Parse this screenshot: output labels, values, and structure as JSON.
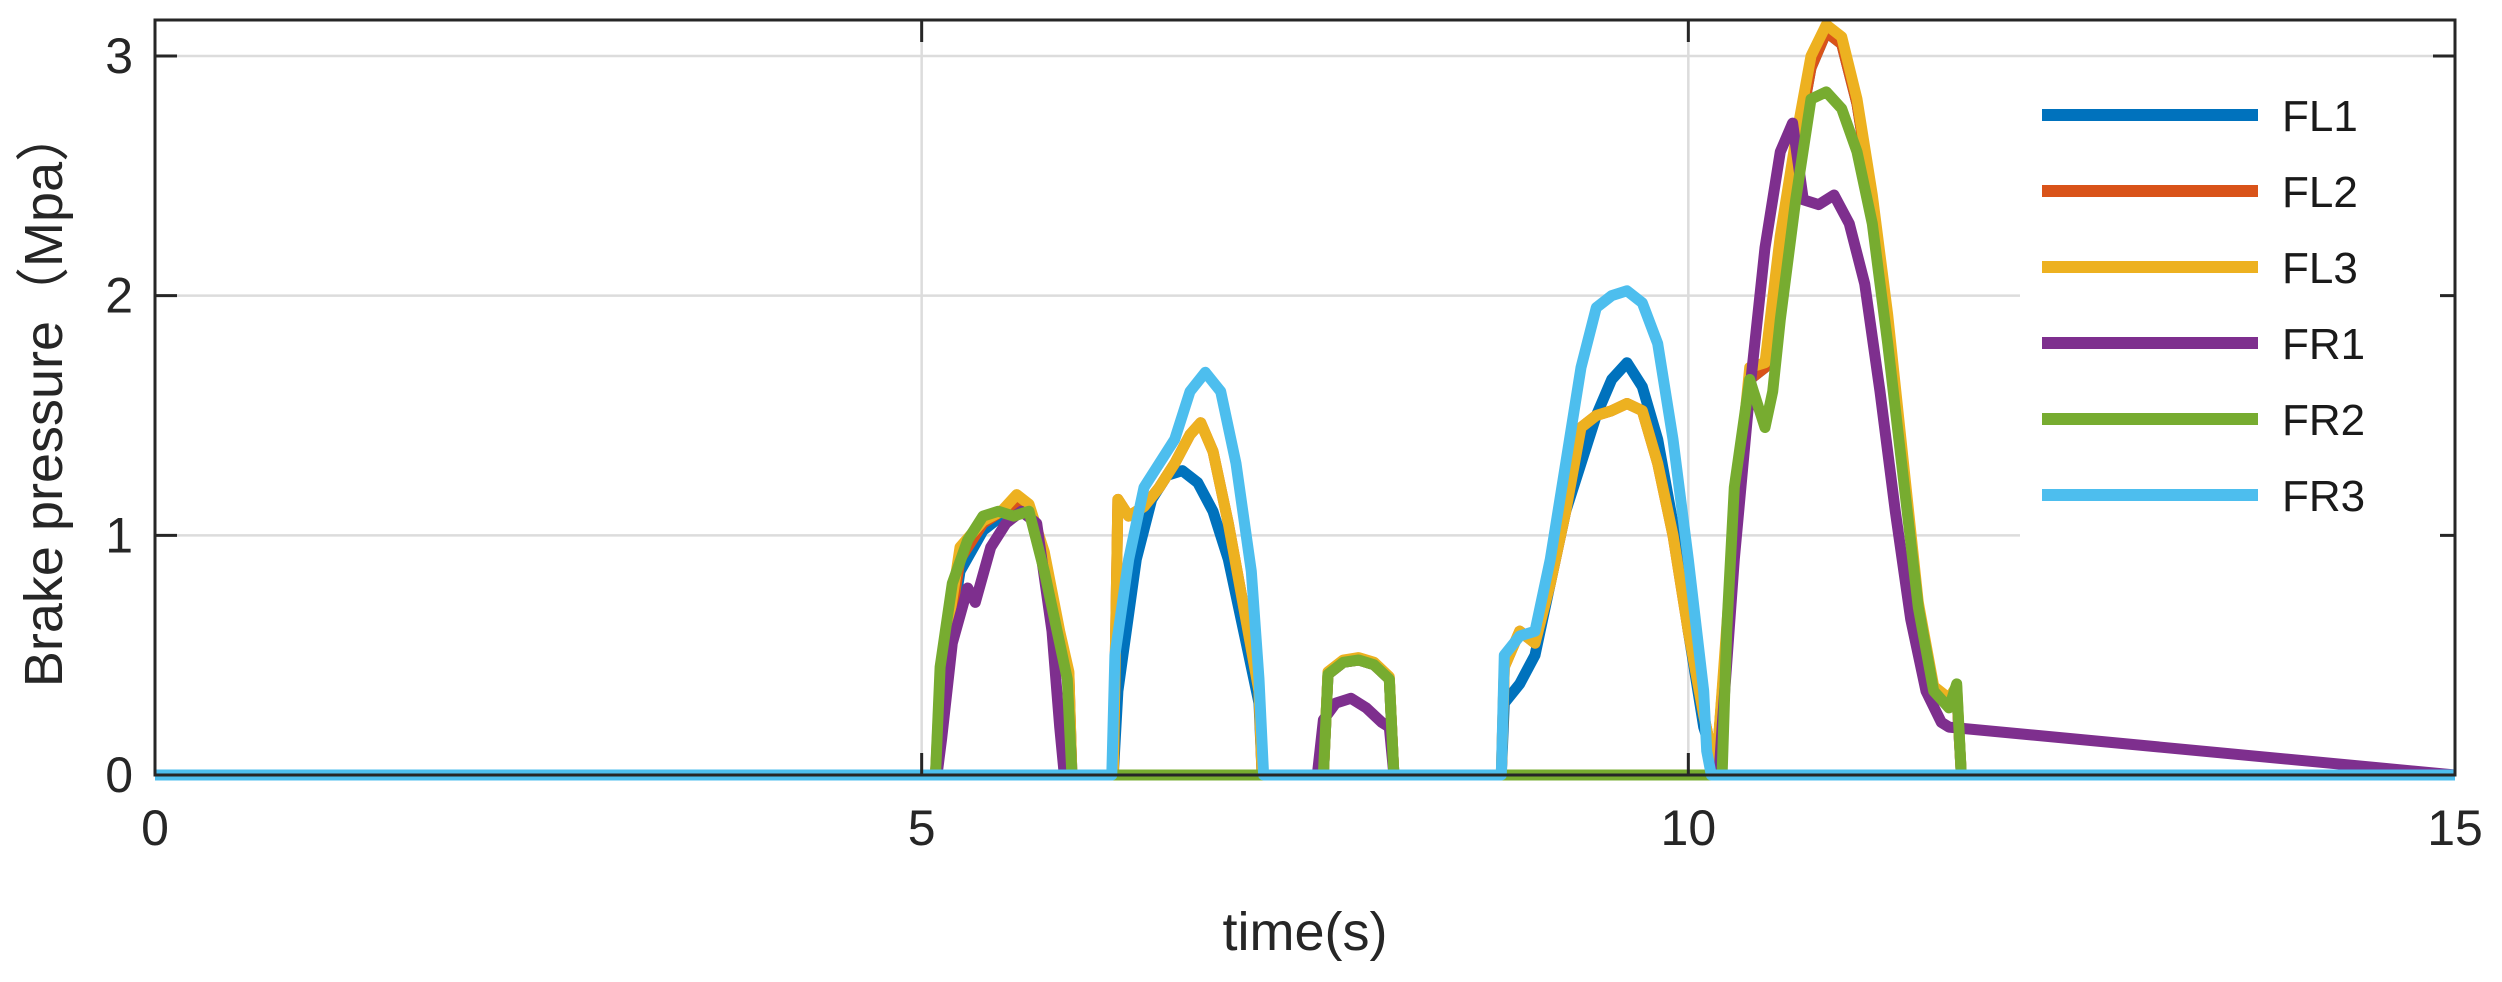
{
  "chart_data": {
    "type": "line",
    "title": "",
    "xlabel": "time(s)",
    "ylabel": "Brake pressure（Mpa）",
    "xlim": [
      0,
      15
    ],
    "ylim": [
      0,
      3.15
    ],
    "xticks": [
      0,
      5,
      10,
      15
    ],
    "xtick_labels": [
      "0",
      "5",
      "10",
      "15"
    ],
    "yticks": [
      0,
      1,
      2,
      3
    ],
    "ytick_labels": [
      "0",
      "1",
      "2",
      "3"
    ],
    "grid": true,
    "legend_position": "top-right",
    "series": [
      {
        "name": "FL1",
        "color": "#0072BD",
        "x": [
          0,
          5.09,
          5.12,
          5.25,
          5.4,
          5.52,
          5.62,
          5.7,
          5.8,
          5.9,
          5.96,
          5.98,
          6.25,
          6.28,
          6.4,
          6.5,
          6.6,
          6.7,
          6.8,
          6.9,
          7.0,
          7.1,
          7.2,
          7.22,
          7.62,
          7.65,
          7.75,
          7.85,
          7.95,
          8.05,
          8.08,
          8.78,
          8.8,
          8.9,
          9.0,
          9.1,
          9.2,
          9.3,
          9.4,
          9.5,
          9.6,
          9.7,
          9.8,
          9.9,
          10.0,
          10.1,
          10.15,
          10.18,
          10.3,
          10.4,
          10.5,
          10.6,
          10.7,
          10.8,
          10.9,
          11.0,
          11.1,
          11.2,
          11.3,
          11.4,
          11.5,
          11.6,
          11.7,
          11.75,
          11.78,
          15
        ],
        "y": [
          0,
          0,
          0.3,
          0.85,
          1.02,
          1.08,
          1.12,
          1.1,
          0.9,
          0.55,
          0.4,
          0,
          0,
          0.35,
          0.9,
          1.15,
          1.25,
          1.27,
          1.22,
          1.1,
          0.9,
          0.6,
          0.3,
          0,
          0,
          0.42,
          0.47,
          0.48,
          0.46,
          0.4,
          0,
          0,
          0.3,
          0.38,
          0.5,
          0.8,
          1.1,
          1.3,
          1.5,
          1.65,
          1.72,
          1.62,
          1.4,
          1.05,
          0.6,
          0.2,
          0.1,
          0,
          1.0,
          1.65,
          1.7,
          2.2,
          2.6,
          2.95,
          3.1,
          3.05,
          2.8,
          2.4,
          1.9,
          1.3,
          0.7,
          0.35,
          0.3,
          0.35,
          0,
          0
        ]
      },
      {
        "name": "FL2",
        "color": "#D95319",
        "x": [
          0,
          5.09,
          5.12,
          5.25,
          5.4,
          5.52,
          5.62,
          5.7,
          5.8,
          5.9,
          5.96,
          5.98,
          6.25,
          6.28,
          6.35,
          6.45,
          6.55,
          6.65,
          6.75,
          6.82,
          6.9,
          7.0,
          7.1,
          7.2,
          7.22,
          7.62,
          7.65,
          7.75,
          7.85,
          7.95,
          8.05,
          8.08,
          8.78,
          8.8,
          8.9,
          9.0,
          9.1,
          9.2,
          9.3,
          9.4,
          9.5,
          9.6,
          9.7,
          9.8,
          9.9,
          10.0,
          10.1,
          10.15,
          10.18,
          10.3,
          10.4,
          10.5,
          10.6,
          10.7,
          10.8,
          10.9,
          11.0,
          11.1,
          11.2,
          11.3,
          11.4,
          11.5,
          11.6,
          11.7,
          11.75,
          11.78,
          15
        ],
        "y": [
          0,
          0,
          0.35,
          0.9,
          1.05,
          1.1,
          1.14,
          1.12,
          0.92,
          0.58,
          0.42,
          0,
          0,
          1.15,
          1.08,
          1.12,
          1.2,
          1.3,
          1.42,
          1.47,
          1.35,
          1.05,
          0.7,
          0.35,
          0,
          0,
          0.42,
          0.47,
          0.48,
          0.46,
          0.4,
          0,
          0,
          0.45,
          0.6,
          0.55,
          0.8,
          1.1,
          1.45,
          1.5,
          1.52,
          1.55,
          1.52,
          1.3,
          1.0,
          0.6,
          0.25,
          0.1,
          0,
          1.0,
          1.65,
          1.7,
          2.2,
          2.6,
          2.95,
          3.1,
          3.05,
          2.8,
          2.4,
          1.9,
          1.3,
          0.7,
          0.35,
          0.3,
          0.35,
          0,
          0
        ]
      },
      {
        "name": "FL3",
        "color": "#EDB120",
        "x": [
          0,
          5.09,
          5.12,
          5.25,
          5.4,
          5.52,
          5.62,
          5.7,
          5.8,
          5.9,
          5.96,
          5.98,
          6.25,
          6.28,
          6.35,
          6.45,
          6.55,
          6.65,
          6.75,
          6.82,
          6.9,
          7.0,
          7.1,
          7.2,
          7.22,
          7.62,
          7.65,
          7.75,
          7.85,
          7.95,
          8.05,
          8.08,
          8.78,
          8.8,
          8.9,
          9.0,
          9.1,
          9.2,
          9.3,
          9.4,
          9.5,
          9.6,
          9.7,
          9.8,
          9.9,
          10.0,
          10.1,
          10.15,
          10.18,
          10.3,
          10.4,
          10.5,
          10.6,
          10.7,
          10.8,
          10.9,
          11.0,
          11.1,
          11.2,
          11.3,
          11.4,
          11.5,
          11.6,
          11.7,
          11.75,
          11.78,
          15
        ],
        "y": [
          0,
          0,
          0.4,
          0.95,
          1.06,
          1.1,
          1.17,
          1.13,
          0.93,
          0.6,
          0.43,
          0,
          0,
          1.15,
          1.08,
          1.12,
          1.2,
          1.3,
          1.42,
          1.47,
          1.35,
          1.05,
          0.7,
          0.35,
          0,
          0,
          0.43,
          0.48,
          0.49,
          0.47,
          0.41,
          0,
          0,
          0.45,
          0.6,
          0.55,
          0.8,
          1.1,
          1.45,
          1.5,
          1.52,
          1.55,
          1.52,
          1.3,
          1.0,
          0.6,
          0.25,
          0.1,
          0,
          1.05,
          1.7,
          1.72,
          2.25,
          2.65,
          3.0,
          3.13,
          3.08,
          2.82,
          2.42,
          1.92,
          1.32,
          0.72,
          0.37,
          0.32,
          0.37,
          0,
          0
        ]
      },
      {
        "name": "FR1",
        "color": "#7E2F8E",
        "x": [
          0,
          5.1,
          5.13,
          5.2,
          5.3,
          5.35,
          5.45,
          5.55,
          5.65,
          5.75,
          5.85,
          5.9,
          5.93,
          6.32,
          7.58,
          7.62,
          7.7,
          7.8,
          7.9,
          8.0,
          8.05,
          8.08,
          10.2,
          10.22,
          10.3,
          10.4,
          10.5,
          10.6,
          10.68,
          10.75,
          10.85,
          10.95,
          11.05,
          11.15,
          11.25,
          11.35,
          11.45,
          11.55,
          11.65,
          11.7,
          15
        ],
        "y": [
          0,
          0,
          0.15,
          0.55,
          0.78,
          0.72,
          0.95,
          1.05,
          1.1,
          1.05,
          0.6,
          0.2,
          0,
          0,
          0,
          0.23,
          0.3,
          0.32,
          0.28,
          0.22,
          0.2,
          0,
          0,
          0.2,
          0.9,
          1.6,
          2.2,
          2.6,
          2.72,
          2.4,
          2.38,
          2.42,
          2.3,
          2.05,
          1.6,
          1.1,
          0.65,
          0.35,
          0.22,
          0.2,
          0
        ]
      },
      {
        "name": "FR2",
        "color": "#77AC30",
        "x": [
          0,
          5.09,
          5.12,
          5.2,
          5.3,
          5.4,
          5.5,
          5.6,
          5.7,
          5.8,
          5.9,
          5.95,
          5.98,
          7.62,
          7.65,
          7.75,
          7.85,
          7.95,
          8.05,
          8.08,
          10.22,
          10.25,
          10.3,
          10.4,
          10.45,
          10.5,
          10.55,
          10.6,
          10.7,
          10.8,
          10.9,
          11.0,
          11.1,
          11.2,
          11.3,
          11.4,
          11.5,
          11.6,
          11.7,
          11.75,
          11.78,
          15
        ],
        "y": [
          0,
          0,
          0.45,
          0.8,
          0.98,
          1.08,
          1.1,
          1.08,
          1.1,
          0.85,
          0.55,
          0.4,
          0,
          0,
          0.42,
          0.47,
          0.48,
          0.46,
          0.4,
          0,
          0,
          0.6,
          1.2,
          1.65,
          1.55,
          1.45,
          1.6,
          1.9,
          2.4,
          2.82,
          2.85,
          2.78,
          2.6,
          2.3,
          1.8,
          1.25,
          0.7,
          0.35,
          0.28,
          0.38,
          0,
          0
        ]
      },
      {
        "name": "FR3",
        "color": "#4DBEEE",
        "x": [
          0,
          6.24,
          6.26,
          6.35,
          6.45,
          6.55,
          6.65,
          6.75,
          6.85,
          6.95,
          7.05,
          7.15,
          7.2,
          7.23,
          8.78,
          8.8,
          8.9,
          9.0,
          9.1,
          9.2,
          9.3,
          9.4,
          9.5,
          9.6,
          9.7,
          9.8,
          9.9,
          10.0,
          10.1,
          10.12,
          10.15,
          15
        ],
        "y": [
          0,
          0,
          0.5,
          0.9,
          1.2,
          1.3,
          1.4,
          1.6,
          1.68,
          1.6,
          1.3,
          0.85,
          0.4,
          0,
          0,
          0.5,
          0.58,
          0.6,
          0.9,
          1.3,
          1.7,
          1.95,
          2.0,
          2.02,
          1.97,
          1.8,
          1.4,
          0.9,
          0.35,
          0.1,
          0,
          0
        ]
      }
    ]
  }
}
